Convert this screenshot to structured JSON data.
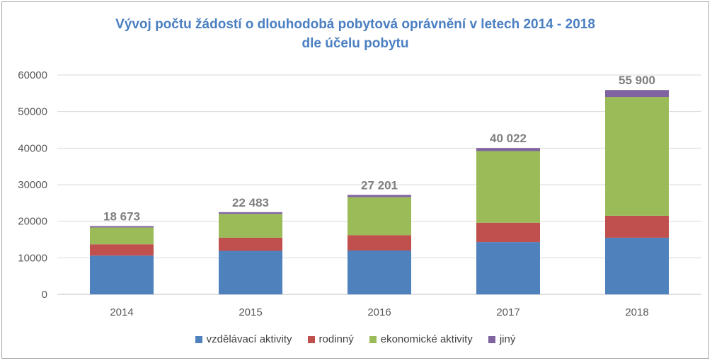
{
  "chart_data": {
    "type": "bar",
    "stacked": true,
    "title": "Vývoj počtu žádostí o dlouhodobá  pobytová oprávnění v letech 2014 - 2018",
    "subtitle": "dle účelu pobytu",
    "categories": [
      "2014",
      "2015",
      "2016",
      "2017",
      "2018"
    ],
    "series": [
      {
        "name": "vzdělávací aktivity",
        "color": "#4f81bd",
        "values": [
          10600,
          11900,
          12000,
          14300,
          15500
        ]
      },
      {
        "name": "rodinný",
        "color": "#c0504d",
        "values": [
          3100,
          3600,
          4200,
          5300,
          6000
        ]
      },
      {
        "name": "ekonomické aktivity",
        "color": "#9bbb59",
        "values": [
          4600,
          6500,
          10400,
          19600,
          32500
        ]
      },
      {
        "name": "jiný",
        "color": "#8064a2",
        "values": [
          373,
          483,
          601,
          822,
          1900
        ]
      }
    ],
    "totals": [
      "18 673",
      "22 483",
      "27 201",
      "40 022",
      "55 900"
    ],
    "ylim": [
      0,
      60000
    ],
    "yticks": [
      0,
      10000,
      20000,
      30000,
      40000,
      50000,
      60000
    ],
    "ytick_labels": [
      "0",
      "10000",
      "20000",
      "30000",
      "40000",
      "50000",
      "60000"
    ],
    "grid": true,
    "legend_position": "bottom"
  }
}
